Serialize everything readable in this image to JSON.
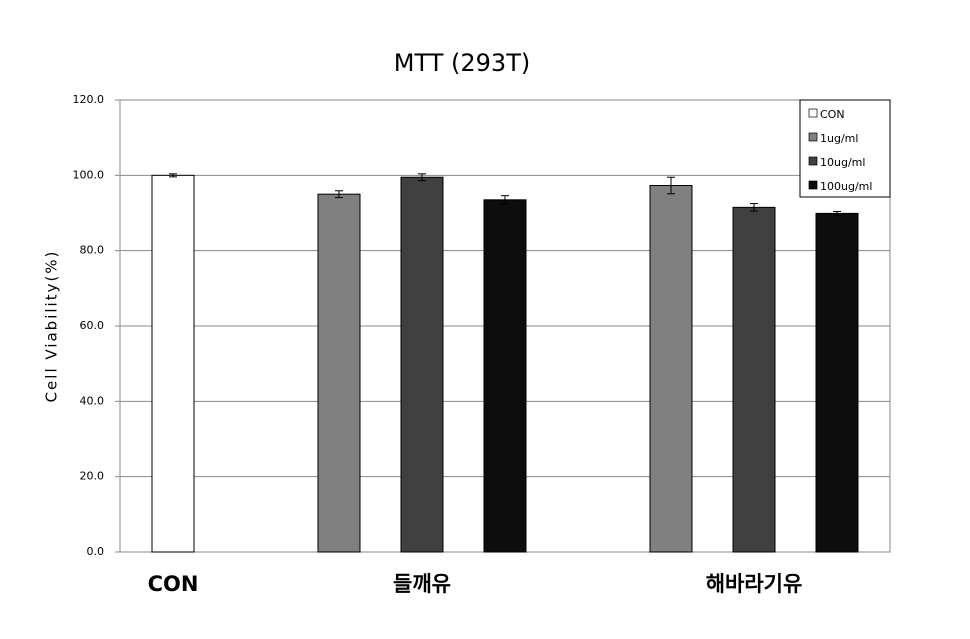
{
  "chart_data": {
    "type": "bar",
    "title": "MTT  (293T)",
    "y_label": "Cell Viability(%)",
    "categories": [
      "CON",
      "들깨유",
      "해바라기유"
    ],
    "series": [
      {
        "name": "CON",
        "color": "#ffffff",
        "values": [
          100,
          null,
          null
        ],
        "errors": [
          0.4,
          null,
          null
        ]
      },
      {
        "name": "1ug/ml",
        "color": "#808080",
        "values": [
          null,
          95,
          97.3
        ],
        "errors": [
          null,
          0.9,
          2.2
        ]
      },
      {
        "name": "10ug/ml",
        "color": "#404040",
        "values": [
          null,
          99.5,
          91.5
        ],
        "errors": [
          null,
          0.9,
          1.0
        ]
      },
      {
        "name": "100ug/ml",
        "color": "#0d0d0d",
        "values": [
          null,
          93.5,
          89.9
        ],
        "errors": [
          null,
          1.1,
          0.5
        ]
      }
    ],
    "ylim": [
      0,
      120
    ],
    "yticks": [
      {
        "value": 0,
        "label": "0.0"
      },
      {
        "value": 20,
        "label": "20.0"
      },
      {
        "value": 40,
        "label": "40.0"
      },
      {
        "value": 60,
        "label": "60.0"
      },
      {
        "value": 80,
        "label": "80.0"
      },
      {
        "value": 100,
        "label": "100.0"
      },
      {
        "value": 120,
        "label": "120.0"
      }
    ],
    "grid": true,
    "legend": "top-right"
  }
}
